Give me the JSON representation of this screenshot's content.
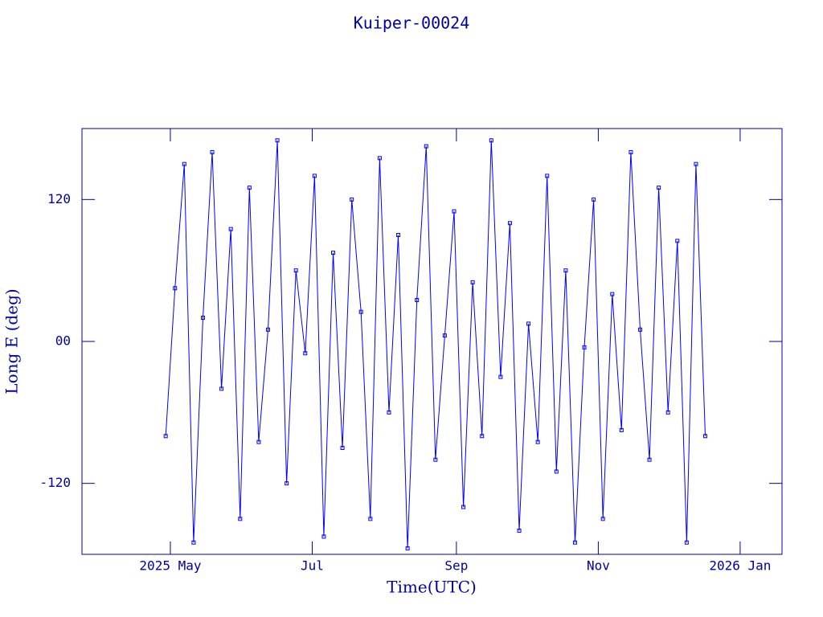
{
  "chart_data": {
    "type": "line",
    "title": "Kuiper-00024",
    "xlabel": "Time(UTC)",
    "ylabel": "Long E (deg)",
    "x": [
      "2025-04-29",
      "2025-05-03",
      "2025-05-07",
      "2025-05-11",
      "2025-05-15",
      "2025-05-19",
      "2025-05-23",
      "2025-05-27",
      "2025-05-31",
      "2025-06-04",
      "2025-06-08",
      "2025-06-12",
      "2025-06-16",
      "2025-06-20",
      "2025-06-24",
      "2025-06-28",
      "2025-07-02",
      "2025-07-06",
      "2025-07-10",
      "2025-07-14",
      "2025-07-18",
      "2025-07-22",
      "2025-07-26",
      "2025-07-30",
      "2025-08-03",
      "2025-08-07",
      "2025-08-11",
      "2025-08-15",
      "2025-08-19",
      "2025-08-23",
      "2025-08-27",
      "2025-08-31",
      "2025-09-04",
      "2025-09-08",
      "2025-09-12",
      "2025-09-16",
      "2025-09-20",
      "2025-09-24",
      "2025-09-28",
      "2025-10-02",
      "2025-10-06",
      "2025-10-10",
      "2025-10-14",
      "2025-10-18",
      "2025-10-22",
      "2025-10-26",
      "2025-10-30",
      "2025-11-03",
      "2025-11-07",
      "2025-11-11",
      "2025-11-15",
      "2025-11-19",
      "2025-11-23",
      "2025-11-27",
      "2025-12-01",
      "2025-12-05",
      "2025-12-09",
      "2025-12-13",
      "2025-12-17"
    ],
    "series": [
      {
        "color": "#0000ff",
        "values": [
          -80,
          45,
          150,
          -170,
          20,
          160,
          -40,
          95,
          -150,
          130,
          -85,
          10,
          170,
          -120,
          60,
          -10,
          140,
          -165,
          75,
          -90,
          120,
          25,
          -150,
          155,
          -60,
          90,
          -175,
          35,
          165,
          -100,
          5,
          110,
          -140,
          50,
          -80,
          170,
          -30,
          100,
          -160,
          15,
          -85,
          140,
          -110,
          60,
          -170,
          -5,
          120,
          -150,
          40,
          -75,
          160,
          10,
          -100,
          130,
          -60,
          85,
          -170,
          150,
          -80
        ]
      }
    ],
    "xlim": [
      "2025-03-24",
      "2026-01-19"
    ],
    "xticks": [
      {
        "value": "2025-05-01",
        "label": "2025 May"
      },
      {
        "value": "2025-07-01",
        "label": "Jul"
      },
      {
        "value": "2025-09-01",
        "label": "Sep"
      },
      {
        "value": "2025-11-01",
        "label": "Nov"
      },
      {
        "value": "2026-01-01",
        "label": "2026 Jan"
      }
    ],
    "ylim": [
      -180,
      180
    ],
    "yticks": [
      -120,
      {
        "value": 0,
        "label": "00"
      },
      120
    ],
    "axis_color": "#0000a0"
  }
}
